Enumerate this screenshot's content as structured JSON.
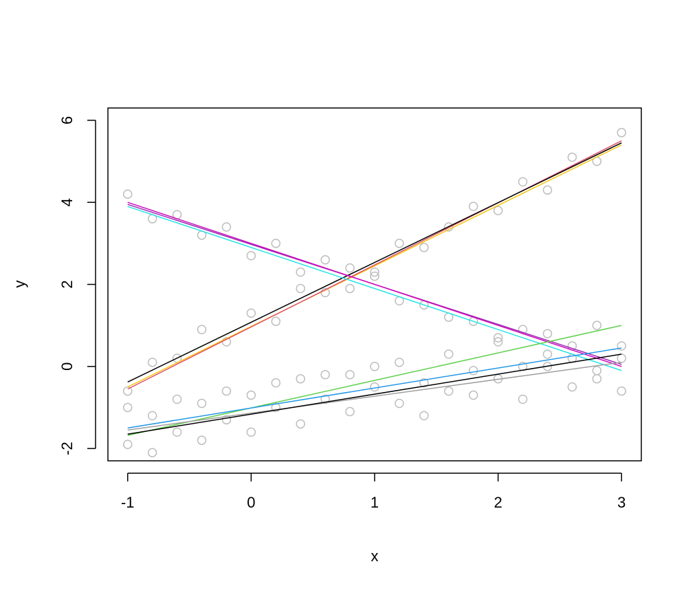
{
  "chart_data": {
    "type": "scatter",
    "xlabel": "x",
    "ylabel": "y",
    "xlim": [
      -1.16,
      3.16
    ],
    "ylim": [
      -2.3,
      6.3
    ],
    "xticks": [
      -1,
      0,
      1,
      2,
      3
    ],
    "yticks": [
      -2,
      0,
      2,
      4,
      6
    ],
    "series": [
      {
        "mode": "points",
        "color": "#bebebe",
        "x": [
          -1,
          -0.8,
          -0.6,
          -0.4,
          -0.2,
          0,
          0.2,
          0.4,
          0.6,
          0.8,
          1,
          1.2,
          1.4,
          1.6,
          1.8,
          2,
          2.2,
          2.4,
          2.6,
          2.8,
          3,
          -1,
          -0.8,
          -0.6,
          -0.4,
          -0.2,
          0,
          0.2,
          0.4,
          0.6,
          0.8,
          1,
          1.2,
          1.4,
          1.6,
          1.8,
          2,
          2.2,
          2.4,
          2.6,
          2.8,
          3,
          -1,
          -0.8,
          -0.6,
          -0.4,
          -0.2,
          0,
          0.2,
          0.4,
          0.6,
          0.8,
          1,
          1.2,
          1.4,
          1.6,
          1.8,
          2,
          2.2,
          2.4,
          2.6,
          2.8,
          3,
          -1,
          -0.8,
          -0.6,
          -0.4,
          -0.2,
          0,
          0.2,
          0.4,
          0.6,
          0.8,
          1,
          1.2,
          1.4,
          1.6,
          1.8,
          2,
          2.2,
          2.4,
          2.6,
          2.8,
          3
        ],
        "y": [
          -0.6,
          0.1,
          0.2,
          0.9,
          0.6,
          1.3,
          1.1,
          1.9,
          1.8,
          2.4,
          2.3,
          3.0,
          2.9,
          3.4,
          3.9,
          3.8,
          4.5,
          4.3,
          5.1,
          5.0,
          5.7,
          4.2,
          3.6,
          3.7,
          3.2,
          3.4,
          2.7,
          3.0,
          2.3,
          2.6,
          1.9,
          2.2,
          1.6,
          1.5,
          1.2,
          1.1,
          0.7,
          0.9,
          0.3,
          0.5,
          -0.1,
          0.2,
          -1.9,
          -1.2,
          -1.6,
          -0.9,
          -1.3,
          -0.7,
          -1.0,
          -0.3,
          -0.8,
          -0.2,
          -0.5,
          0.1,
          -0.4,
          0.3,
          -0.1,
          0.6,
          0.0,
          0.8,
          0.2,
          1.0,
          0.5,
          -1.0,
          -2.1,
          -0.8,
          -1.8,
          -0.6,
          -1.6,
          -0.4,
          -1.4,
          -0.2,
          -1.1,
          0.0,
          -0.9,
          -1.2,
          -0.6,
          -0.7,
          -0.3,
          -0.8,
          0.0,
          -0.5,
          -0.3,
          -0.6
        ]
      },
      {
        "mode": "lines",
        "color": "#f5c710",
        "x": [
          -1,
          3
        ],
        "y": [
          -0.5,
          5.4
        ]
      },
      {
        "mode": "lines",
        "color": "#df536b",
        "x": [
          -1,
          3
        ],
        "y": [
          -0.55,
          5.5
        ]
      },
      {
        "mode": "lines",
        "color": "#000000",
        "x": [
          -1,
          3
        ],
        "y": [
          -0.38,
          5.45
        ]
      },
      {
        "mode": "lines",
        "color": "#28e2e5",
        "x": [
          -1,
          3
        ],
        "y": [
          3.9,
          -0.1
        ]
      },
      {
        "mode": "lines",
        "color": "#9e2ab5",
        "x": [
          -1,
          3
        ],
        "y": [
          3.95,
          0.05
        ]
      },
      {
        "mode": "lines",
        "color": "#cd0bbc",
        "x": [
          -1,
          3
        ],
        "y": [
          4.0,
          0.0
        ]
      },
      {
        "mode": "lines",
        "color": "#61d04f",
        "x": [
          -1,
          3
        ],
        "y": [
          -1.68,
          1.0
        ]
      },
      {
        "mode": "lines",
        "color": "#2297e6",
        "x": [
          -1,
          3
        ],
        "y": [
          -1.5,
          0.45
        ]
      },
      {
        "mode": "lines",
        "color": "#9e9e9e",
        "x": [
          -1,
          3
        ],
        "y": [
          -1.55,
          0.1
        ]
      },
      {
        "mode": "lines",
        "color": "#000000",
        "x": [
          -1,
          3
        ],
        "y": [
          -1.65,
          0.3
        ]
      }
    ]
  }
}
